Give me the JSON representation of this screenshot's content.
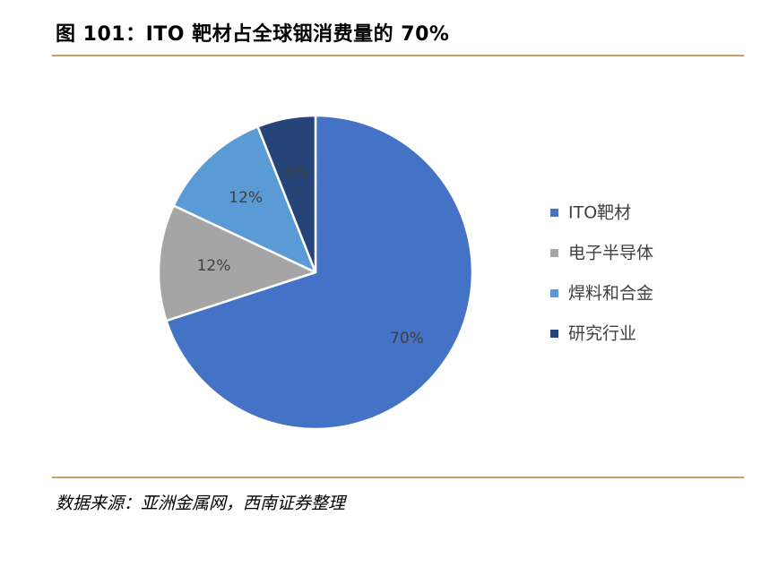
{
  "header": {
    "title": "图 101：ITO 靶材占全球铟消费量的 70%"
  },
  "footer": {
    "source": "数据来源：亚洲金属网，西南证券整理"
  },
  "chart_data": {
    "type": "pie",
    "title": "",
    "legend_position": "right",
    "slices": [
      {
        "name": "ITO靶材",
        "value": 70,
        "label": "70%",
        "color": "#4472c4"
      },
      {
        "name": "电子半导体",
        "value": 12,
        "label": "12%",
        "color": "#a5a5a5"
      },
      {
        "name": "焊料和合金",
        "value": 12,
        "label": "12%",
        "color": "#5b9bd5"
      },
      {
        "name": "研究行业",
        "value": 6,
        "label": "6%",
        "color": "#264478"
      }
    ]
  }
}
